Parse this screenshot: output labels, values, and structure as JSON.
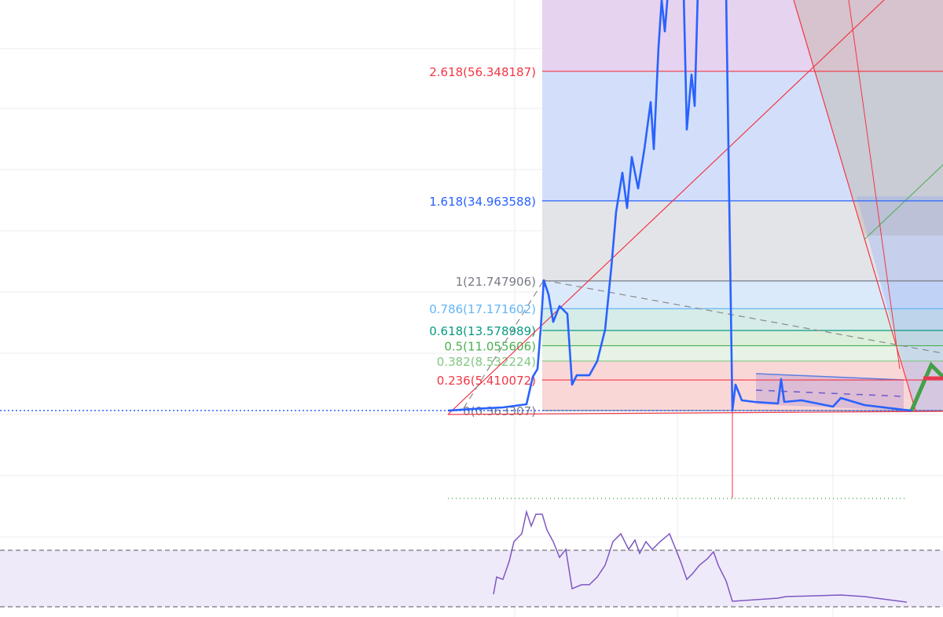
{
  "chart_data": {
    "type": "line",
    "grid": true,
    "fib_levels": [
      {
        "ratio": "2.618",
        "price": 56.348187,
        "label": "2.618(56.348187)",
        "line": "#f23645",
        "fill": "#f9d3d3"
      },
      {
        "ratio": "1.618",
        "price": 34.963588,
        "label": "1.618(34.963588)",
        "line": "#2962ff",
        "fill": "#d3dffa"
      },
      {
        "ratio": "1",
        "price": 21.747906,
        "label": "1(21.747906)",
        "line": "#787b86",
        "fill": "#e3e4e8"
      },
      {
        "ratio": "0.786",
        "price": 17.171602,
        "label": "0.786(17.171602)",
        "line": "#64b5f6",
        "fill": "#dbeafa"
      },
      {
        "ratio": "0.618",
        "price": 13.578989,
        "label": "0.618(13.578989)",
        "line": "#089981",
        "fill": "#d6ece8"
      },
      {
        "ratio": "0.5",
        "price": 11.055606,
        "label": "0.5(11.055606)",
        "line": "#4caf50",
        "fill": "#dcefdc"
      },
      {
        "ratio": "0.382",
        "price": 8.532224,
        "label": "0.382(8.532224)",
        "line": "#81c784",
        "fill": "#e6f3e6"
      },
      {
        "ratio": "0.236",
        "price": 5.410072,
        "label": "0.236(5.410072)",
        "line": "#f23645",
        "fill": "#f9d7d7"
      },
      {
        "ratio": "0",
        "price": 0.363307,
        "label": "0(0.363307)",
        "line": "#787b86",
        "fill": "#f9d7d7"
      }
    ],
    "above_top_fill": "#e6d3ef",
    "price_series": {
      "color": "#2962ff",
      "points": [
        [
          0,
          0.36
        ],
        [
          15,
          0.62
        ],
        [
          35,
          0.88
        ],
        [
          50,
          1.4
        ],
        [
          54,
          5.93
        ],
        [
          57,
          7.23
        ],
        [
          59,
          13.7
        ],
        [
          61,
          21.86
        ],
        [
          64,
          19.53
        ],
        [
          67,
          15.0
        ],
        [
          71,
          17.59
        ],
        [
          76,
          16.3
        ],
        [
          79,
          4.64
        ],
        [
          82,
          6.19
        ],
        [
          90,
          6.19
        ],
        [
          95,
          8.52
        ],
        [
          100,
          13.7
        ],
        [
          104,
          24.07
        ],
        [
          107,
          33.13
        ],
        [
          111,
          39.61
        ],
        [
          114,
          33.78
        ],
        [
          117,
          42.2
        ],
        [
          121,
          37.02
        ],
        [
          125,
          43.5
        ],
        [
          129,
          51.27
        ],
        [
          131,
          43.5
        ],
        [
          134,
          60.34
        ],
        [
          136,
          68.11
        ],
        [
          138,
          62.93
        ],
        [
          140,
          69.41
        ],
        [
          150,
          69.41
        ],
        [
          152,
          46.74
        ],
        [
          155,
          55.8
        ],
        [
          157,
          50.62
        ],
        [
          159,
          69.41
        ],
        [
          177,
          69.41
        ],
        [
          181,
          0.36
        ],
        [
          183,
          4.64
        ],
        [
          187,
          2.05
        ],
        [
          195,
          1.79
        ],
        [
          210,
          1.53
        ],
        [
          212,
          5.54
        ],
        [
          214,
          1.79
        ],
        [
          225,
          2.05
        ],
        [
          245,
          1.01
        ],
        [
          250,
          2.44
        ],
        [
          265,
          1.27
        ],
        [
          290,
          0.49
        ],
        [
          295,
          0.36
        ]
      ]
    },
    "oscillator": {
      "color": "#7e57c2",
      "band": [
        30,
        70
      ],
      "band_fill": "#efeafa",
      "points": [
        [
          29,
          38.9
        ],
        [
          31,
          51.1
        ],
        [
          35,
          49.4
        ],
        [
          39,
          62.2
        ],
        [
          42,
          76.1
        ],
        [
          47,
          81.7
        ],
        [
          50,
          97.2
        ],
        [
          53,
          87.2
        ],
        [
          56,
          95.5
        ],
        [
          60,
          95.5
        ],
        [
          63,
          84.4
        ],
        [
          67,
          76.1
        ],
        [
          71,
          65.0
        ],
        [
          75,
          70.6
        ],
        [
          79,
          42.8
        ],
        [
          85,
          45.6
        ],
        [
          90,
          45.6
        ],
        [
          95,
          51.1
        ],
        [
          100,
          59.4
        ],
        [
          105,
          76.1
        ],
        [
          110,
          81.7
        ],
        [
          115,
          70.6
        ],
        [
          119,
          77.2
        ],
        [
          122,
          67.8
        ],
        [
          126,
          76.1
        ],
        [
          130,
          70.6
        ],
        [
          135,
          76.1
        ],
        [
          141,
          81.7
        ],
        [
          145,
          70.6
        ],
        [
          148,
          62.2
        ],
        [
          152,
          49.4
        ],
        [
          156,
          53.9
        ],
        [
          160,
          59.4
        ],
        [
          165,
          63.9
        ],
        [
          169,
          68.9
        ],
        [
          172,
          59.4
        ],
        [
          177,
          48.3
        ],
        [
          181,
          33.9
        ],
        [
          210,
          36.1
        ],
        [
          215,
          37.2
        ],
        [
          250,
          38.3
        ],
        [
          265,
          37.2
        ],
        [
          292,
          33.3
        ]
      ]
    }
  }
}
